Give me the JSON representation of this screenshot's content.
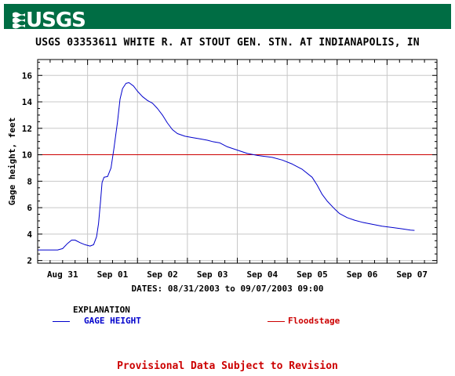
{
  "banner": {
    "logo_text": "USGS",
    "background_color": "#006d44",
    "icon": "usgs-wave-icon"
  },
  "chart_data": {
    "type": "line",
    "title": "USGS 03353611 WHITE R. AT STOUT GEN. STN. AT INDIANAPOLIS, IN",
    "ylabel": "Gage height, feet",
    "xlabel": "DATES: 08/31/2003 to 09/07/2003 09:00",
    "x_ticks": [
      "Aug 31",
      "Sep 01",
      "Sep 02",
      "Sep 03",
      "Sep 04",
      "Sep 05",
      "Sep 06",
      "Sep 07"
    ],
    "y_ticks": [
      2,
      4,
      6,
      8,
      10,
      12,
      14,
      16
    ],
    "ylim": [
      1.8,
      17.2
    ],
    "xlim_days": [
      -0.5,
      7.5
    ],
    "grid": true,
    "series": [
      {
        "name": "GAGE HEIGHT",
        "color": "#0000cc",
        "points": [
          [
            -0.5,
            2.8
          ],
          [
            -0.3,
            2.8
          ],
          [
            -0.1,
            2.8
          ],
          [
            0.0,
            2.9
          ],
          [
            0.1,
            3.3
          ],
          [
            0.18,
            3.55
          ],
          [
            0.25,
            3.55
          ],
          [
            0.35,
            3.35
          ],
          [
            0.45,
            3.2
          ],
          [
            0.55,
            3.1
          ],
          [
            0.62,
            3.2
          ],
          [
            0.68,
            3.8
          ],
          [
            0.72,
            4.8
          ],
          [
            0.76,
            6.5
          ],
          [
            0.79,
            7.9
          ],
          [
            0.83,
            8.3
          ],
          [
            0.9,
            8.35
          ],
          [
            0.97,
            9.0
          ],
          [
            1.03,
            10.5
          ],
          [
            1.1,
            12.5
          ],
          [
            1.15,
            14.2
          ],
          [
            1.2,
            15.0
          ],
          [
            1.27,
            15.4
          ],
          [
            1.33,
            15.45
          ],
          [
            1.42,
            15.2
          ],
          [
            1.5,
            14.8
          ],
          [
            1.6,
            14.4
          ],
          [
            1.7,
            14.1
          ],
          [
            1.8,
            13.9
          ],
          [
            1.9,
            13.5
          ],
          [
            2.0,
            13.0
          ],
          [
            2.1,
            12.4
          ],
          [
            2.2,
            11.9
          ],
          [
            2.3,
            11.6
          ],
          [
            2.45,
            11.4
          ],
          [
            2.6,
            11.3
          ],
          [
            2.75,
            11.2
          ],
          [
            2.9,
            11.1
          ],
          [
            3.0,
            11.0
          ],
          [
            3.15,
            10.9
          ],
          [
            3.3,
            10.6
          ],
          [
            3.5,
            10.35
          ],
          [
            3.7,
            10.1
          ],
          [
            3.9,
            9.95
          ],
          [
            4.0,
            9.9
          ],
          [
            4.2,
            9.8
          ],
          [
            4.4,
            9.6
          ],
          [
            4.6,
            9.3
          ],
          [
            4.8,
            8.9
          ],
          [
            5.0,
            8.3
          ],
          [
            5.1,
            7.7
          ],
          [
            5.2,
            7.0
          ],
          [
            5.3,
            6.5
          ],
          [
            5.45,
            5.9
          ],
          [
            5.55,
            5.55
          ],
          [
            5.7,
            5.25
          ],
          [
            5.85,
            5.05
          ],
          [
            6.0,
            4.9
          ],
          [
            6.2,
            4.75
          ],
          [
            6.4,
            4.6
          ],
          [
            6.6,
            4.5
          ],
          [
            6.8,
            4.4
          ],
          [
            6.97,
            4.3
          ],
          [
            7.05,
            4.28
          ]
        ]
      }
    ],
    "reference_lines": [
      {
        "name": "Floodstage",
        "value": 10.0,
        "color": "#cc0000"
      }
    ]
  },
  "legend": {
    "heading": "EXPLANATION",
    "series_label": "GAGE HEIGHT",
    "floodstage_label": "Floodstage",
    "series_color": "#0000cc",
    "floodstage_color": "#cc0000"
  },
  "footer": {
    "provisional_text": "Provisional Data Subject to Revision",
    "provisional_color": "#cc0000"
  }
}
